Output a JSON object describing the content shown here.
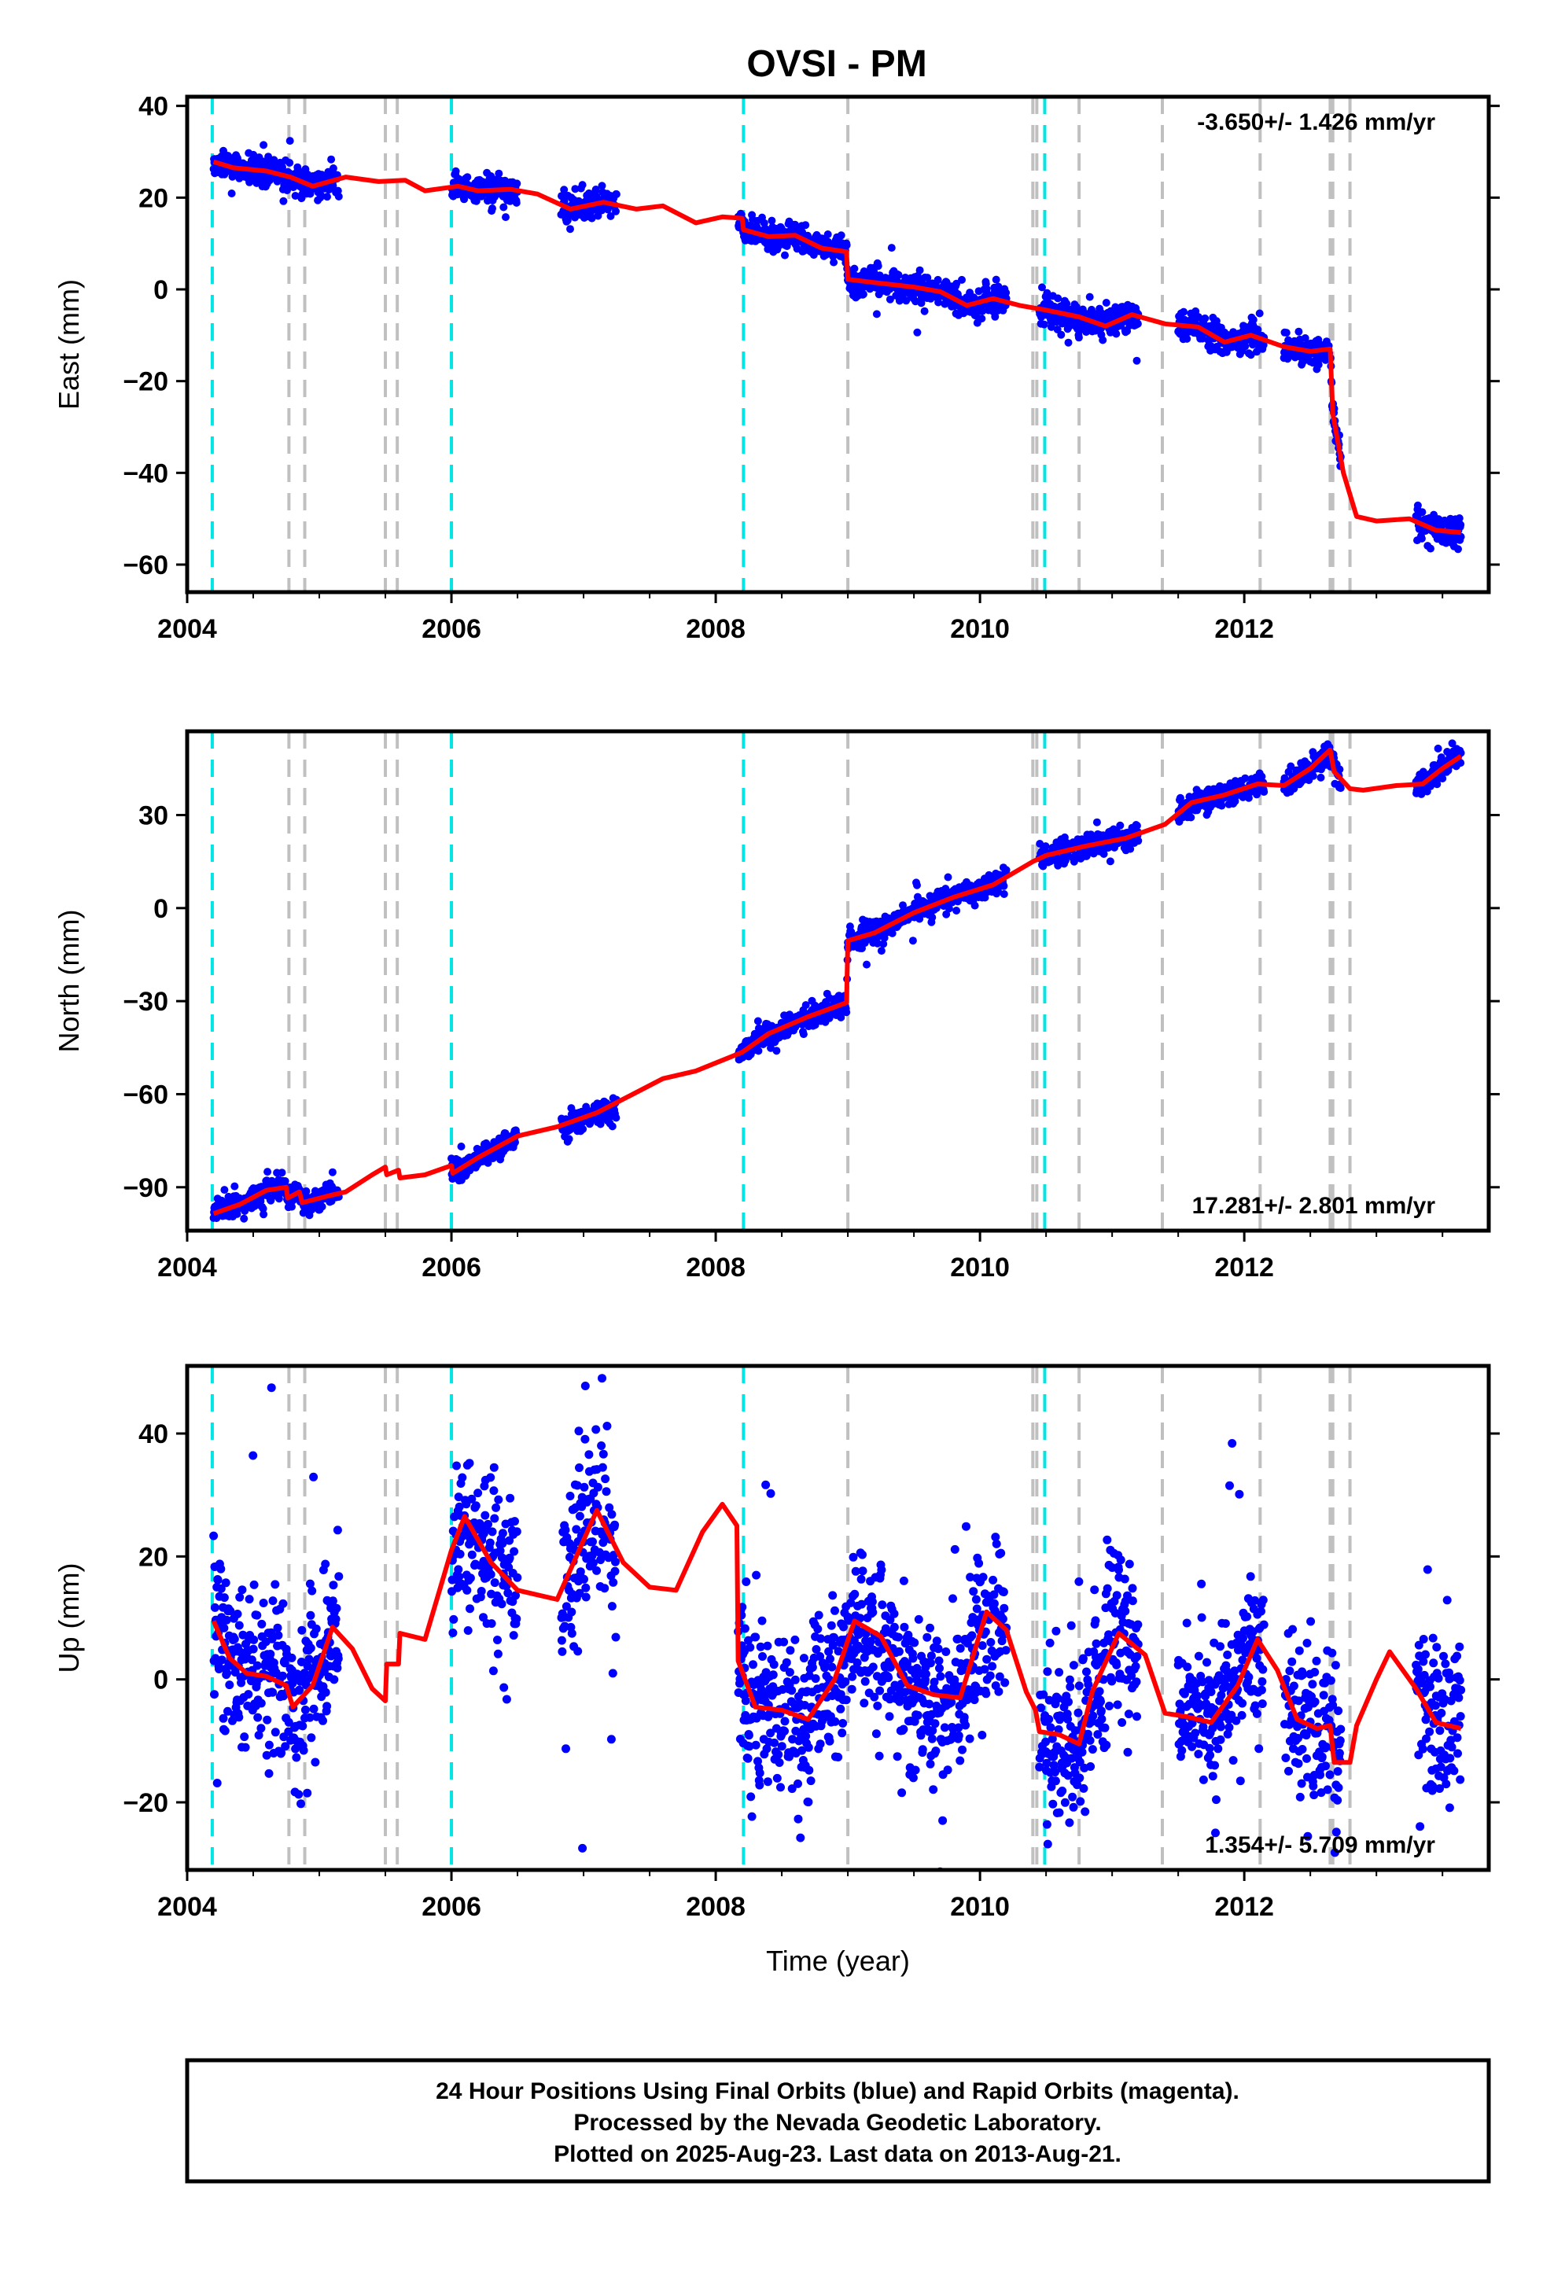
{
  "title": "OVSI - PM",
  "caption": [
    "24 Hour Positions Using Final Orbits (blue) and Rapid Orbits (magenta).",
    "Processed by the Nevada Geodetic Laboratory.",
    "Plotted on 2025-Aug-23. Last data on 2013-Aug-21."
  ],
  "colors": {
    "final_orbits": "#0000ff",
    "model_fit": "#ff0000",
    "antenna_change": "#00e5e5",
    "earthquake": "#c0c0c0"
  },
  "chart_data": [
    {
      "type": "scatter",
      "name": "east",
      "ylabel": "East (mm)",
      "xlabel": "",
      "rate": "-3.650+/- 1.426 mm/yr",
      "rate_position": "top-right",
      "xlim": [
        2004.0,
        2013.85
      ],
      "ylim": [
        -66,
        42
      ],
      "xticks": [
        2004,
        2006,
        2008,
        2010,
        2012
      ],
      "yticks": [
        40,
        20,
        0,
        -20,
        -40,
        -60
      ],
      "series": [
        {
          "role": "daily-positions",
          "segments": [
            [
              2004.2,
              2005.15
            ],
            [
              2006.0,
              2006.5
            ],
            [
              2006.83,
              2007.25
            ],
            [
              2008.17,
              2009.0
            ],
            [
              2009.0,
              2010.2
            ],
            [
              2010.45,
              2011.2
            ],
            [
              2011.5,
              2012.15
            ],
            [
              2012.3,
              2012.73
            ],
            [
              2013.3,
              2013.64
            ]
          ]
        },
        {
          "role": "model-fit",
          "points": [
            [
              2004.2,
              27.8
            ],
            [
              2004.35,
              26.5
            ],
            [
              2004.6,
              25.8
            ],
            [
              2004.78,
              24.5
            ],
            [
              2004.95,
              22.5
            ],
            [
              2005.2,
              24.5
            ],
            [
              2005.45,
              23.5
            ],
            [
              2005.65,
              23.8
            ],
            [
              2005.8,
              21.5
            ],
            [
              2006.05,
              22.5
            ],
            [
              2006.2,
              21.5
            ],
            [
              2006.45,
              21.8
            ],
            [
              2006.65,
              20.8
            ],
            [
              2006.9,
              17.5
            ],
            [
              2007.15,
              19.0
            ],
            [
              2007.4,
              17.5
            ],
            [
              2007.6,
              18.2
            ],
            [
              2007.85,
              14.5
            ],
            [
              2008.05,
              15.8
            ],
            [
              2008.2,
              15.5
            ],
            [
              2008.21,
              13.0
            ],
            [
              2008.4,
              11.5
            ],
            [
              2008.6,
              11.8
            ],
            [
              2008.8,
              9.0
            ],
            [
              2008.99,
              8.2
            ],
            [
              2009.0,
              2.2
            ],
            [
              2009.2,
              1.5
            ],
            [
              2009.5,
              0.5
            ],
            [
              2009.7,
              -0.5
            ],
            [
              2009.9,
              -3.5
            ],
            [
              2010.1,
              -2.0
            ],
            [
              2010.3,
              -3.5
            ],
            [
              2010.5,
              -4.5
            ],
            [
              2010.75,
              -6.0
            ],
            [
              2010.95,
              -8.0
            ],
            [
              2011.15,
              -5.5
            ],
            [
              2011.4,
              -7.5
            ],
            [
              2011.65,
              -8.2
            ],
            [
              2011.85,
              -11.5
            ],
            [
              2012.05,
              -10.0
            ],
            [
              2012.15,
              -11.0
            ],
            [
              2012.3,
              -12.5
            ],
            [
              2012.5,
              -13.5
            ],
            [
              2012.65,
              -13.0
            ],
            [
              2012.67,
              -27.0
            ],
            [
              2012.75,
              -40.0
            ],
            [
              2012.85,
              -49.5
            ],
            [
              2013.0,
              -50.5
            ],
            [
              2013.25,
              -50.0
            ],
            [
              2013.45,
              -52.5
            ],
            [
              2013.64,
              -53.0
            ]
          ]
        }
      ]
    },
    {
      "type": "scatter",
      "name": "north",
      "ylabel": "North (mm)",
      "xlabel": "",
      "rate": "17.281+/- 2.801 mm/yr",
      "rate_position": "bottom-right",
      "xlim": [
        2004.0,
        2013.85
      ],
      "ylim": [
        -104,
        57
      ],
      "xticks": [
        2004,
        2006,
        2008,
        2010,
        2012
      ],
      "yticks": [
        30,
        0,
        -30,
        -60,
        -90
      ],
      "series": [
        {
          "role": "daily-positions",
          "segments": [
            [
              2004.2,
              2005.15
            ],
            [
              2006.0,
              2006.5
            ],
            [
              2006.83,
              2007.25
            ],
            [
              2008.17,
              2009.0
            ],
            [
              2009.0,
              2010.2
            ],
            [
              2010.45,
              2011.2
            ],
            [
              2011.5,
              2012.15
            ],
            [
              2012.3,
              2012.73
            ],
            [
              2013.3,
              2013.64
            ]
          ]
        },
        {
          "role": "model-fit",
          "points": [
            [
              2004.2,
              -98.5
            ],
            [
              2004.4,
              -95.5
            ],
            [
              2004.6,
              -91.0
            ],
            [
              2004.75,
              -90.0
            ],
            [
              2004.76,
              -93.5
            ],
            [
              2004.85,
              -91.5
            ],
            [
              2004.87,
              -95.0
            ],
            [
              2005.05,
              -93.0
            ],
            [
              2005.2,
              -91.5
            ],
            [
              2005.4,
              -86.0
            ],
            [
              2005.5,
              -83.5
            ],
            [
              2005.51,
              -86.0
            ],
            [
              2005.6,
              -84.5
            ],
            [
              2005.61,
              -87.0
            ],
            [
              2005.8,
              -86.0
            ],
            [
              2006.0,
              -83.0
            ],
            [
              2006.01,
              -85.5
            ],
            [
              2006.2,
              -80.5
            ],
            [
              2006.5,
              -73.5
            ],
            [
              2006.8,
              -70.5
            ],
            [
              2007.1,
              -66.0
            ],
            [
              2007.35,
              -60.5
            ],
            [
              2007.6,
              -55.0
            ],
            [
              2007.85,
              -52.5
            ],
            [
              2008.2,
              -46.5
            ],
            [
              2008.4,
              -40.5
            ],
            [
              2008.7,
              -35.0
            ],
            [
              2008.99,
              -30.5
            ],
            [
              2009.0,
              -10.5
            ],
            [
              2009.2,
              -8.0
            ],
            [
              2009.5,
              -1.5
            ],
            [
              2009.8,
              3.5
            ],
            [
              2010.1,
              7.5
            ],
            [
              2010.4,
              15.0
            ],
            [
              2010.5,
              17.0
            ],
            [
              2010.8,
              20.0
            ],
            [
              2011.1,
              22.5
            ],
            [
              2011.4,
              27.0
            ],
            [
              2011.6,
              34.0
            ],
            [
              2011.85,
              36.5
            ],
            [
              2012.1,
              40.0
            ],
            [
              2012.3,
              39.5
            ],
            [
              2012.5,
              45.0
            ],
            [
              2012.65,
              51.0
            ],
            [
              2012.68,
              44.0
            ],
            [
              2012.8,
              38.5
            ],
            [
              2012.9,
              38.0
            ],
            [
              2013.15,
              39.5
            ],
            [
              2013.35,
              40.0
            ],
            [
              2013.5,
              45.0
            ],
            [
              2013.64,
              49.0
            ]
          ]
        }
      ]
    },
    {
      "type": "scatter",
      "name": "up",
      "ylabel": "Up (mm)",
      "xlabel": "Time (year)",
      "rate": "1.354+/- 5.709 mm/yr",
      "rate_position": "bottom-right",
      "xlim": [
        2004.0,
        2013.85
      ],
      "ylim": [
        -31,
        51
      ],
      "xticks": [
        2004,
        2006,
        2008,
        2010,
        2012
      ],
      "yticks": [
        40,
        20,
        0,
        -20
      ],
      "series": [
        {
          "role": "daily-positions",
          "segments": [
            [
              2004.2,
              2005.15
            ],
            [
              2006.0,
              2006.5
            ],
            [
              2006.83,
              2007.25
            ],
            [
              2008.17,
              2009.0
            ],
            [
              2009.0,
              2010.2
            ],
            [
              2010.45,
              2011.2
            ],
            [
              2011.5,
              2012.15
            ],
            [
              2012.3,
              2012.73
            ],
            [
              2013.3,
              2013.64
            ]
          ]
        },
        {
          "role": "model-fit",
          "points": [
            [
              2004.2,
              9.5
            ],
            [
              2004.32,
              3.5
            ],
            [
              2004.45,
              1.0
            ],
            [
              2004.6,
              0.5
            ],
            [
              2004.75,
              -1.0
            ],
            [
              2004.8,
              -4.5
            ],
            [
              2004.95,
              -1.0
            ],
            [
              2005.1,
              8.5
            ],
            [
              2005.25,
              5.0
            ],
            [
              2005.4,
              -1.5
            ],
            [
              2005.5,
              -3.5
            ],
            [
              2005.51,
              2.5
            ],
            [
              2005.6,
              2.5
            ],
            [
              2005.61,
              7.5
            ],
            [
              2005.8,
              6.5
            ],
            [
              2006.0,
              21.0
            ],
            [
              2006.1,
              26.5
            ],
            [
              2006.3,
              19.0
            ],
            [
              2006.5,
              14.5
            ],
            [
              2006.8,
              13.0
            ],
            [
              2007.1,
              27.5
            ],
            [
              2007.3,
              19.0
            ],
            [
              2007.5,
              15.0
            ],
            [
              2007.7,
              14.5
            ],
            [
              2007.9,
              24.0
            ],
            [
              2008.05,
              28.5
            ],
            [
              2008.16,
              25.0
            ],
            [
              2008.17,
              3.0
            ],
            [
              2008.3,
              -4.5
            ],
            [
              2008.5,
              -5.0
            ],
            [
              2008.7,
              -6.5
            ],
            [
              2008.9,
              0.0
            ],
            [
              2009.05,
              9.5
            ],
            [
              2009.25,
              7.0
            ],
            [
              2009.45,
              -1.0
            ],
            [
              2009.65,
              -2.5
            ],
            [
              2009.85,
              -3.0
            ],
            [
              2010.05,
              11.0
            ],
            [
              2010.2,
              8.0
            ],
            [
              2010.35,
              -2.0
            ],
            [
              2010.42,
              -5.0
            ],
            [
              2010.45,
              -8.5
            ],
            [
              2010.6,
              -9.0
            ],
            [
              2010.75,
              -10.5
            ],
            [
              2010.85,
              -2.0
            ],
            [
              2011.05,
              7.5
            ],
            [
              2011.25,
              4.0
            ],
            [
              2011.4,
              -5.5
            ],
            [
              2011.55,
              -6.0
            ],
            [
              2011.75,
              -7.0
            ],
            [
              2011.95,
              -1.0
            ],
            [
              2012.1,
              6.5
            ],
            [
              2012.25,
              1.5
            ],
            [
              2012.4,
              -6.5
            ],
            [
              2012.55,
              -8.0
            ],
            [
              2012.65,
              -7.5
            ],
            [
              2012.68,
              -13.5
            ],
            [
              2012.8,
              -13.5
            ],
            [
              2012.85,
              -7.5
            ],
            [
              2013.0,
              0.0
            ],
            [
              2013.1,
              4.5
            ],
            [
              2013.3,
              -1.5
            ],
            [
              2013.45,
              -7.0
            ],
            [
              2013.64,
              -8.0
            ]
          ]
        }
      ]
    }
  ],
  "event_lines": {
    "antenna_change": [
      2004.19,
      2006.0,
      2008.21,
      2010.49
    ],
    "earthquake": [
      2004.77,
      2004.89,
      2005.5,
      2005.59,
      2009.0,
      2010.4,
      2010.43,
      2010.75,
      2011.38,
      2012.12,
      2012.65,
      2012.67,
      2012.8
    ]
  }
}
